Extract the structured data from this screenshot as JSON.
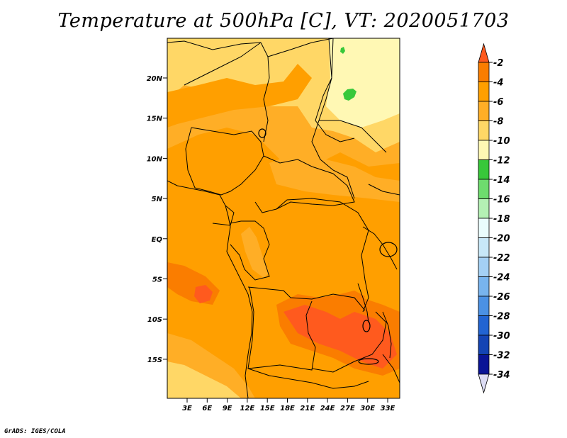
{
  "title": "Temperature at 500hPa [C], VT: 2020051703",
  "credit": "GrADS: IGES/COLA",
  "map": {
    "lat_labels": [
      "20N",
      "15N",
      "10N",
      "5N",
      "EQ",
      "5S",
      "10S",
      "15S"
    ],
    "lon_labels": [
      "3E",
      "6E",
      "9E",
      "12E",
      "15E",
      "18E",
      "21E",
      "24E",
      "27E",
      "30E",
      "33E"
    ]
  },
  "colorbar": {
    "labels": [
      "-2",
      "-4",
      "-6",
      "-8",
      "-10",
      "-12",
      "-14",
      "-16",
      "-18",
      "-20",
      "-22",
      "-24",
      "-26",
      "-28",
      "-30",
      "-32",
      "-34"
    ],
    "colors": [
      "#ff5a1e",
      "#fa7d00",
      "#ff9f00",
      "#ffae26",
      "#ffd766",
      "#fff8b4",
      "#38c83a",
      "#6edc6e",
      "#b4f0b4",
      "#eafcfc",
      "#c8e8f8",
      "#a4d0f4",
      "#78b4ee",
      "#4b91e4",
      "#2264d2",
      "#1444b4",
      "#0a1496",
      "#dcdcf4"
    ]
  }
}
